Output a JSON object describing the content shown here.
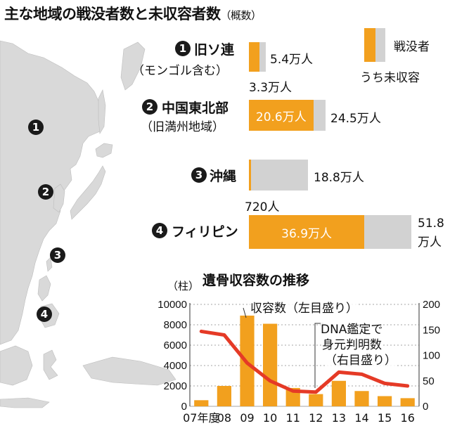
{
  "title": "主な地域の戦没者数と未収容者数",
  "title_note": "（概数）",
  "map_markers": [
    "1",
    "2",
    "3",
    "4"
  ],
  "colors": {
    "total": "#d2d2d2",
    "unrecovered": "#f2a01e",
    "line": "#e53a26",
    "map": "#d9d9d9"
  },
  "legend": {
    "total_label": "戦没者",
    "unrecovered_label": "うち未収容"
  },
  "chart_data": [
    {
      "type": "bar",
      "title": "主な地域の戦没者数と未収容者数",
      "series": [
        {
          "name": "戦没者",
          "values": [
            5.4,
            24.5,
            18.8,
            51.8
          ]
        },
        {
          "name": "うち未収容",
          "values": [
            3.3,
            20.6,
            0.072,
            36.9
          ]
        }
      ],
      "regions": [
        {
          "num": "1",
          "name": "旧ソ連",
          "sub": "（モンゴル含む）",
          "total": 5.4,
          "unrecovered": 3.3,
          "total_label": "5.4万人",
          "unrecovered_label": "3.3万人"
        },
        {
          "num": "2",
          "name": "中国東北部",
          "sub": "（旧満州地域）",
          "total": 24.5,
          "unrecovered": 20.6,
          "total_label": "24.5万人",
          "unrecovered_label": "20.6万人"
        },
        {
          "num": "3",
          "name": "沖縄",
          "sub": "",
          "total": 18.8,
          "unrecovered": 0.072,
          "total_label": "18.8万人",
          "unrecovered_label": "720人"
        },
        {
          "num": "4",
          "name": "フィリピン",
          "sub": "",
          "total": 51.8,
          "unrecovered": 36.9,
          "total_label_1": "51.8",
          "total_label_2": "万人",
          "unrecovered_label": "36.9万人"
        }
      ]
    },
    {
      "type": "bar",
      "title": "遺骨収容数の推移",
      "categories": [
        "07年度",
        "08",
        "09",
        "10",
        "11",
        "12",
        "13",
        "14",
        "15",
        "16"
      ],
      "y_unit": "（柱）",
      "ylim": [
        0,
        10000
      ],
      "y2lim": [
        0,
        200
      ],
      "y_ticks": [
        "0",
        "2000",
        "4000",
        "6000",
        "8000",
        "10000"
      ],
      "y2_ticks": [
        "0",
        "50",
        "100",
        "150",
        "200"
      ],
      "bar_series": {
        "name": "収容数（左目盛り）",
        "values": [
          600,
          2000,
          8900,
          8100,
          1800,
          1200,
          2500,
          1500,
          1000,
          800
        ]
      },
      "line_series": {
        "name": "DNA鑑定で身元判明数（右目盛り）",
        "values": [
          147,
          140,
          85,
          50,
          30,
          28,
          67,
          63,
          45,
          40
        ]
      },
      "annotations": {
        "bars": "収容数（左目盛り）",
        "line_1": "DNA鑑定で",
        "line_2": "身元判明数",
        "line_3": "（右目盛り）"
      }
    }
  ]
}
